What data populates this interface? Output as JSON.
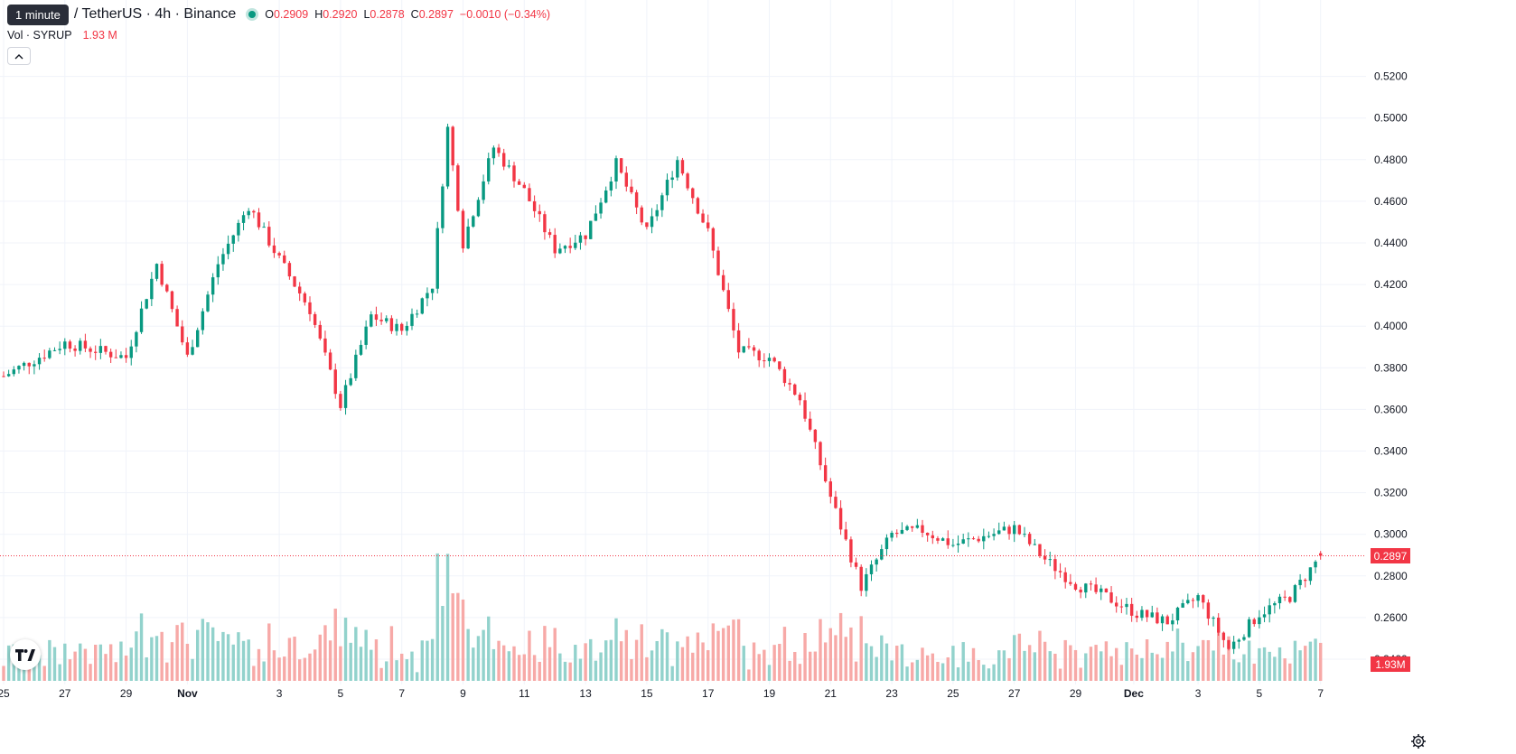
{
  "header": {
    "tooltip": "1 minute",
    "symbol_title": "/ TetherUS · 4h · Binance",
    "ohlc": [
      {
        "key": "O",
        "value": "0.2909"
      },
      {
        "key": "H",
        "value": "0.2920"
      },
      {
        "key": "L",
        "value": "0.2878"
      },
      {
        "key": "C",
        "value": "0.2897"
      }
    ],
    "change": "−0.0010 (−0.34%)",
    "volume_label": "Vol · SYRUP",
    "volume_value": "1.93 M"
  },
  "price_tag": "0.2897",
  "volume_tag": "1.93M",
  "colors": {
    "up": "#089981",
    "down": "#f23645",
    "up_volume": "#92d2cc",
    "down_volume": "#f7a9a7",
    "grid": "#f0f3fa"
  },
  "icons": {
    "collapse": "chevron-up-icon",
    "logo": "tradingview-logo-icon",
    "settings": "gear-icon"
  },
  "chart_data": {
    "type": "candlestick",
    "series_name": "SYRUP / TetherUS · 4h · Binance",
    "y_axis_ticks": [
      "0.5200",
      "0.5000",
      "0.4800",
      "0.4600",
      "0.4400",
      "0.4200",
      "0.4000",
      "0.3800",
      "0.3600",
      "0.3400",
      "0.3200",
      "0.3000",
      "0.2800",
      "0.2600",
      "0.2400"
    ],
    "x_axis_ticks": [
      "25",
      "27",
      "29",
      "Nov",
      "3",
      "5",
      "7",
      "9",
      "11",
      "13",
      "15",
      "17",
      "19",
      "21",
      "23",
      "25",
      "27",
      "29",
      "Dec",
      "3",
      "5",
      "7"
    ],
    "ylim": [
      0.232,
      0.525
    ],
    "last_price": 0.2897,
    "last_volume": "1.93M",
    "grid": true,
    "approx_close_path": [
      {
        "date": "Oct 25",
        "close": 0.376
      },
      {
        "date": "Oct 27",
        "close": 0.392
      },
      {
        "date": "Oct 29",
        "close": 0.385
      },
      {
        "date": "Oct 30",
        "close": 0.43
      },
      {
        "date": "Oct 31",
        "close": 0.385
      },
      {
        "date": "Nov 1",
        "close": 0.43
      },
      {
        "date": "Nov 2",
        "close": 0.458
      },
      {
        "date": "Nov 3",
        "close": 0.432
      },
      {
        "date": "Nov 4",
        "close": 0.408
      },
      {
        "date": "Nov 5",
        "close": 0.362
      },
      {
        "date": "Nov 6",
        "close": 0.405
      },
      {
        "date": "Nov 7",
        "close": 0.398
      },
      {
        "date": "Nov 8",
        "close": 0.42
      },
      {
        "date": "Nov 8.5",
        "close": 0.495
      },
      {
        "date": "Nov 9",
        "close": 0.44
      },
      {
        "date": "Nov 10",
        "close": 0.486
      },
      {
        "date": "Nov 11",
        "close": 0.465
      },
      {
        "date": "Nov 12",
        "close": 0.437
      },
      {
        "date": "Nov 13",
        "close": 0.444
      },
      {
        "date": "Nov 14",
        "close": 0.478
      },
      {
        "date": "Nov 15",
        "close": 0.445
      },
      {
        "date": "Nov 16",
        "close": 0.48
      },
      {
        "date": "Nov 17",
        "close": 0.445
      },
      {
        "date": "Nov 18",
        "close": 0.388
      },
      {
        "date": "Nov 19",
        "close": 0.385
      },
      {
        "date": "Nov 20",
        "close": 0.365
      },
      {
        "date": "Nov 21",
        "close": 0.318
      },
      {
        "date": "Nov 22",
        "close": 0.275
      },
      {
        "date": "Nov 23",
        "close": 0.3
      },
      {
        "date": "Nov 24",
        "close": 0.302
      },
      {
        "date": "Nov 25",
        "close": 0.295
      },
      {
        "date": "Nov 27",
        "close": 0.303
      },
      {
        "date": "Nov 28",
        "close": 0.288
      },
      {
        "date": "Nov 29",
        "close": 0.276
      },
      {
        "date": "Nov 30",
        "close": 0.27
      },
      {
        "date": "Dec 1",
        "close": 0.262
      },
      {
        "date": "Dec 2",
        "close": 0.258
      },
      {
        "date": "Dec 3",
        "close": 0.27
      },
      {
        "date": "Dec 4",
        "close": 0.245
      },
      {
        "date": "Dec 5",
        "close": 0.262
      },
      {
        "date": "Dec 6",
        "close": 0.27
      },
      {
        "date": "Dec 7",
        "close": 0.2897
      }
    ]
  }
}
